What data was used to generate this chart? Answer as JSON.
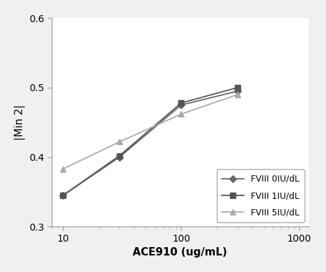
{
  "x_values": [
    10,
    30,
    100,
    300
  ],
  "series": [
    {
      "label": "FVIII 0IU/dL",
      "y": [
        0.345,
        0.4,
        0.475,
        0.495
      ],
      "color": "#666666",
      "marker": "D",
      "markersize": 5,
      "linewidth": 1.3
    },
    {
      "label": "FVIII 1IU/dL",
      "y": [
        0.345,
        0.402,
        0.478,
        0.5
      ],
      "color": "#555555",
      "marker": "s",
      "markersize": 6,
      "linewidth": 1.3
    },
    {
      "label": "FVIII 5IU/dL",
      "y": [
        0.383,
        0.422,
        0.462,
        0.49
      ],
      "color": "#aaaaaa",
      "marker": "^",
      "markersize": 6,
      "linewidth": 1.3
    }
  ],
  "xlabel": "ACE910 (ug/mL)",
  "ylabel": "|Min 2|",
  "ylim": [
    0.3,
    0.6
  ],
  "yticks": [
    0.3,
    0.4,
    0.5,
    0.6
  ],
  "xlim_log": [
    8,
    1200
  ],
  "xticks": [
    10,
    100,
    1000
  ],
  "xticklabels": [
    "10",
    "100",
    "1000"
  ],
  "legend_loc": "lower right",
  "background_color": "#f0f0f0",
  "plot_bg_color": "#ffffff",
  "label_fontsize": 11,
  "tick_fontsize": 10,
  "legend_fontsize": 9
}
